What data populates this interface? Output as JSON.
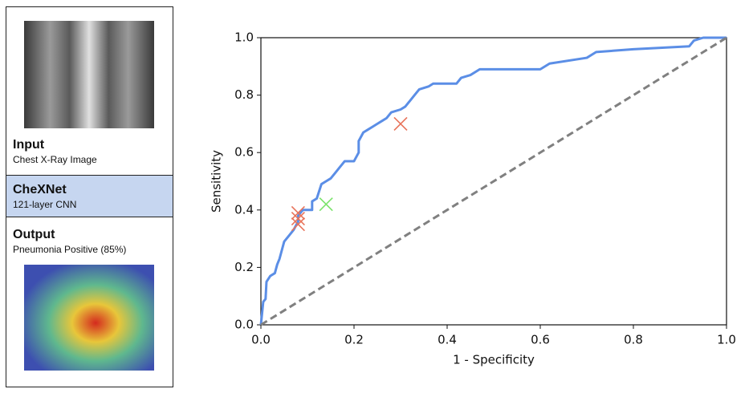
{
  "panel": {
    "input_title": "Input",
    "input_subtitle": "Chest X-Ray Image",
    "model_title": "CheXNet",
    "model_subtitle": "121-layer CNN",
    "output_title": "Output",
    "output_subtitle": "Pneumonia Positive (85%)"
  },
  "chart_data": {
    "type": "line",
    "xlabel": "1 - Specificity",
    "ylabel": "Sensitivity",
    "xlim": [
      0,
      1
    ],
    "ylim": [
      0,
      1
    ],
    "xticks": [
      {
        "value": 0,
        "label": "0.0"
      },
      {
        "value": 0.2,
        "label": "0.2"
      },
      {
        "value": 0.4,
        "label": "0.4"
      },
      {
        "value": 0.6,
        "label": "0.6"
      },
      {
        "value": 0.8,
        "label": "0.8"
      },
      {
        "value": 1,
        "label": "1.0"
      }
    ],
    "yticks": [
      {
        "value": 0,
        "label": "0.0"
      },
      {
        "value": 0.2,
        "label": "0.2"
      },
      {
        "value": 0.4,
        "label": "0.4"
      },
      {
        "value": 0.6,
        "label": "0.6"
      },
      {
        "value": 0.8,
        "label": "0.8"
      },
      {
        "value": 1,
        "label": "1.0"
      }
    ],
    "series": [
      {
        "style": "solid",
        "color": "#5b8ee6",
        "x": [
          0,
          0.005,
          0.01,
          0.012,
          0.02,
          0.03,
          0.035,
          0.04,
          0.045,
          0.05,
          0.06,
          0.07,
          0.08,
          0.08,
          0.09,
          0.11,
          0.11,
          0.12,
          0.13,
          0.14,
          0.15,
          0.16,
          0.17,
          0.18,
          0.2,
          0.21,
          0.21,
          0.22,
          0.23,
          0.24,
          0.25,
          0.26,
          0.27,
          0.28,
          0.3,
          0.31,
          0.32,
          0.33,
          0.34,
          0.36,
          0.37,
          0.42,
          0.43,
          0.45,
          0.47,
          0.6,
          0.62,
          0.7,
          0.72,
          0.8,
          0.92,
          0.93,
          0.95,
          1
        ],
        "values": [
          0,
          0.08,
          0.09,
          0.15,
          0.17,
          0.18,
          0.21,
          0.23,
          0.26,
          0.29,
          0.31,
          0.33,
          0.36,
          0.38,
          0.4,
          0.4,
          0.43,
          0.44,
          0.49,
          0.5,
          0.51,
          0.53,
          0.55,
          0.57,
          0.57,
          0.6,
          0.64,
          0.67,
          0.68,
          0.69,
          0.7,
          0.71,
          0.72,
          0.74,
          0.75,
          0.76,
          0.78,
          0.8,
          0.82,
          0.83,
          0.84,
          0.84,
          0.86,
          0.87,
          0.89,
          0.89,
          0.91,
          0.93,
          0.95,
          0.96,
          0.97,
          0.99,
          1,
          1
        ]
      },
      {
        "style": "dashed",
        "color": "#808080",
        "x": [
          0,
          1
        ],
        "values": [
          0,
          1
        ]
      },
      {
        "style": "x-marker",
        "color": "#e8735a",
        "x": [
          0.08,
          0.08,
          0.08,
          0.3
        ],
        "values": [
          0.39,
          0.37,
          0.35,
          0.7
        ]
      },
      {
        "style": "x-marker",
        "color": "#7be36b",
        "x": [
          0.14
        ],
        "values": [
          0.42
        ]
      }
    ]
  }
}
